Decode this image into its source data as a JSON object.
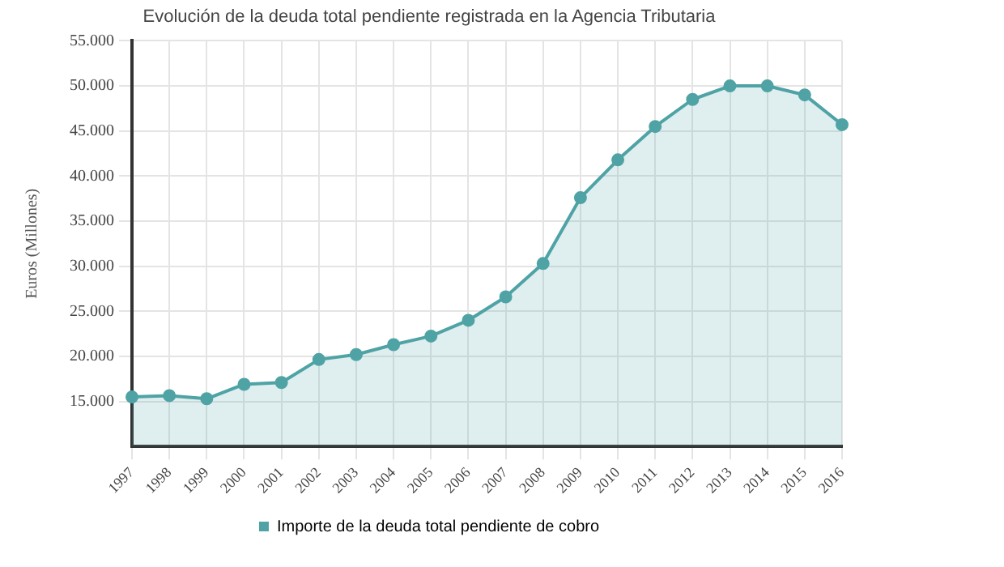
{
  "chart_data": {
    "type": "area",
    "title": "Evolución de la deuda total pendiente registrada en la Agencia Tributaria",
    "ylabel": "Euros (Millones)",
    "categories": [
      "1997",
      "1998",
      "1999",
      "2000",
      "2001",
      "2002",
      "2003",
      "2004",
      "2005",
      "2006",
      "2007",
      "2008",
      "2009",
      "2010",
      "2011",
      "2012",
      "2013",
      "2014",
      "2015",
      "2016"
    ],
    "series": [
      {
        "name": "Importe de la deuda total pendiente de cobro",
        "color": "#4fa3a5",
        "values": [
          15500,
          15650,
          15300,
          16900,
          17100,
          19650,
          20200,
          21300,
          22250,
          24000,
          26600,
          30300,
          37600,
          41800,
          45500,
          48500,
          50000,
          50000,
          49000,
          45700
        ]
      }
    ],
    "ylim": [
      10000,
      55000
    ],
    "yticks": [
      {
        "value": 15000,
        "label": "15.000"
      },
      {
        "value": 20000,
        "label": "20.000"
      },
      {
        "value": 25000,
        "label": "25.000"
      },
      {
        "value": 30000,
        "label": "30.000"
      },
      {
        "value": 35000,
        "label": "35.000"
      },
      {
        "value": 40000,
        "label": "40.000"
      },
      {
        "value": 45000,
        "label": "45.000"
      },
      {
        "value": 50000,
        "label": "50.000"
      },
      {
        "value": 55000,
        "label": "55.000"
      }
    ],
    "grid": true,
    "legend": "bottom",
    "marker": "circle"
  }
}
